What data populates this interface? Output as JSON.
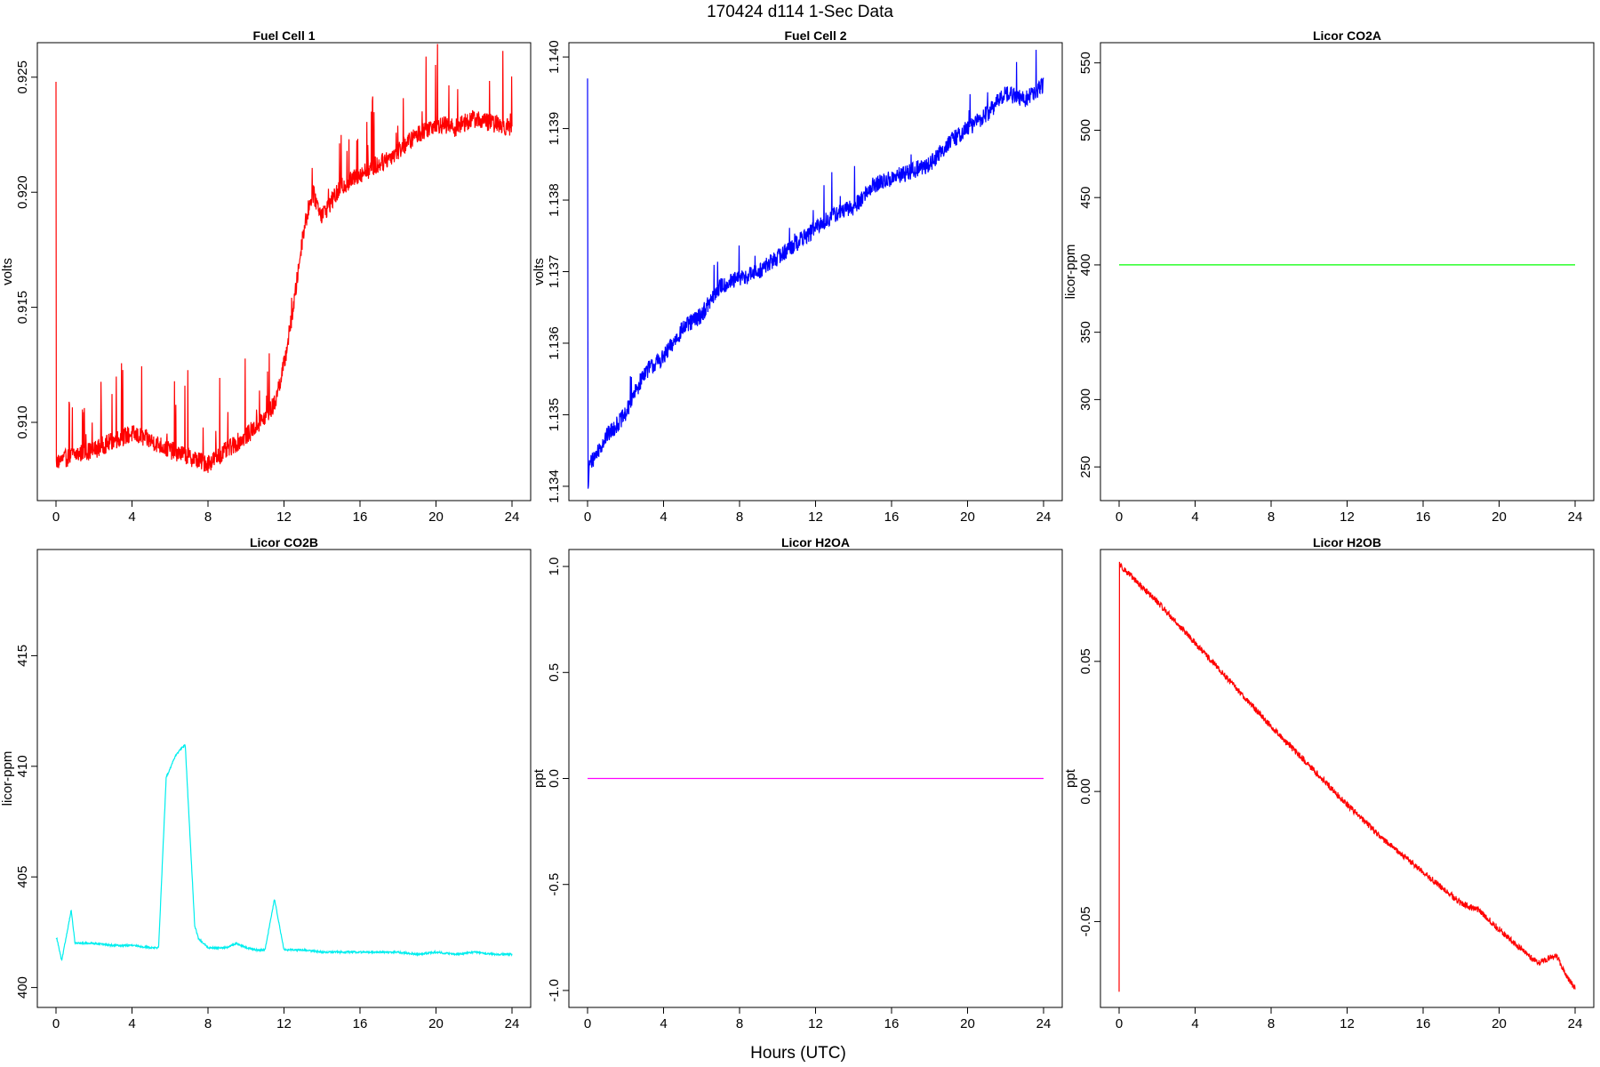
{
  "figure": {
    "title": "170424   d114   1-Sec Data",
    "xlabel": "Hours (UTC)"
  },
  "chart_data": [
    {
      "type": "line",
      "title": "Fuel Cell 1",
      "xlabel": "",
      "ylabel": "volts",
      "color": "#ff0000",
      "xlim": [
        0,
        24
      ],
      "ylim": [
        0.9066,
        0.9265
      ],
      "xticks": [
        0,
        4,
        8,
        12,
        16,
        20,
        24
      ],
      "yticks": [
        0.91,
        0.915,
        0.92,
        0.925
      ],
      "ytick_labels": [
        "0.910",
        "0.915",
        "0.920",
        "0.925"
      ],
      "noise": 0.0004,
      "spike_count": 70,
      "spike_height": 0.0035,
      "x": [
        0,
        0.02,
        0.1,
        1,
        2,
        3,
        4,
        5,
        6,
        7,
        8,
        9,
        10,
        11,
        11.5,
        12,
        12.5,
        13,
        13.5,
        14,
        15,
        16,
        17,
        18,
        19,
        20,
        21,
        22,
        23,
        24
      ],
      "y": [
        0.9248,
        0.9081,
        0.9083,
        0.9086,
        0.9088,
        0.9092,
        0.9095,
        0.9092,
        0.9088,
        0.9085,
        0.9082,
        0.9088,
        0.9094,
        0.9102,
        0.9108,
        0.9125,
        0.915,
        0.9182,
        0.92,
        0.919,
        0.9202,
        0.9208,
        0.9212,
        0.9218,
        0.9225,
        0.923,
        0.9228,
        0.9232,
        0.923,
        0.9228
      ]
    },
    {
      "type": "line",
      "title": "Fuel Cell 2",
      "xlabel": "",
      "ylabel": "volts",
      "color": "#0000ff",
      "xlim": [
        0,
        24
      ],
      "ylim": [
        1.1338,
        1.1402
      ],
      "xticks": [
        0,
        4,
        8,
        12,
        16,
        20,
        24
      ],
      "yticks": [
        1.134,
        1.135,
        1.136,
        1.137,
        1.138,
        1.139,
        1.14
      ],
      "ytick_labels": [
        "1.134",
        "1.135",
        "1.136",
        "1.137",
        "1.138",
        "1.139",
        "1.140"
      ],
      "noise": 0.00012,
      "spike_count": 25,
      "spike_height": 0.0006,
      "x": [
        0,
        0.03,
        0.1,
        1,
        2,
        3,
        4,
        5,
        6,
        7,
        8,
        9,
        10,
        11,
        12,
        13,
        14,
        15,
        16,
        17,
        18,
        19,
        20,
        21,
        22,
        23,
        24
      ],
      "y": [
        1.1397,
        1.134,
        1.1343,
        1.1347,
        1.135,
        1.1356,
        1.1358,
        1.1362,
        1.1364,
        1.1368,
        1.1369,
        1.137,
        1.1372,
        1.1374,
        1.1376,
        1.1378,
        1.1379,
        1.1382,
        1.1383,
        1.1384,
        1.1385,
        1.1388,
        1.139,
        1.1392,
        1.1395,
        1.1394,
        1.1396
      ]
    },
    {
      "type": "line",
      "title": "Licor CO2A",
      "xlabel": "",
      "ylabel": "licor-ppm",
      "color": "#00ff00",
      "xlim": [
        0,
        24
      ],
      "ylim": [
        225,
        565
      ],
      "xticks": [
        0,
        4,
        8,
        12,
        16,
        20,
        24
      ],
      "yticks": [
        250,
        300,
        350,
        400,
        450,
        500,
        550
      ],
      "ytick_labels": [
        "250",
        "300",
        "350",
        "400",
        "450",
        "500",
        "550"
      ],
      "noise": 0,
      "spike_count": 0,
      "spike_height": 0,
      "x": [
        0,
        24
      ],
      "y": [
        400,
        400
      ]
    },
    {
      "type": "line",
      "title": "Licor CO2B",
      "xlabel": "",
      "ylabel": "licor-ppm",
      "color": "#00eeee",
      "xlim": [
        0,
        24
      ],
      "ylim": [
        399.1,
        419.8
      ],
      "xticks": [
        0,
        4,
        8,
        12,
        16,
        20,
        24
      ],
      "yticks": [
        400,
        405,
        410,
        415
      ],
      "ytick_labels": [
        "400",
        "405",
        "410",
        "415"
      ],
      "noise": 0.04,
      "spike_count": 0,
      "spike_height": 0,
      "x": [
        0,
        0.05,
        0.3,
        0.8,
        1.0,
        2,
        3,
        4,
        5,
        5.4,
        5.8,
        6.3,
        6.8,
        7.3,
        7.5,
        8,
        9,
        9.5,
        10,
        10.5,
        11,
        11.5,
        12,
        12.3,
        13,
        14,
        15,
        16,
        17,
        18,
        19,
        20,
        21,
        22,
        23,
        24
      ],
      "y": [
        402.2,
        402.2,
        401.2,
        403.5,
        402.0,
        402.0,
        401.9,
        401.9,
        401.8,
        401.8,
        409.5,
        410.5,
        411.0,
        402.8,
        402.2,
        401.8,
        401.8,
        402.0,
        401.8,
        401.7,
        401.7,
        404.0,
        401.7,
        401.7,
        401.7,
        401.6,
        401.6,
        401.6,
        401.6,
        401.6,
        401.5,
        401.6,
        401.5,
        401.6,
        401.5,
        401.5
      ]
    },
    {
      "type": "line",
      "title": "Licor H2OA",
      "xlabel": "",
      "ylabel": "ppt",
      "color": "#ff00ff",
      "xlim": [
        0,
        24
      ],
      "ylim": [
        -1.08,
        1.08
      ],
      "xticks": [
        0,
        4,
        8,
        12,
        16,
        20,
        24
      ],
      "yticks": [
        -1.0,
        -0.5,
        0.0,
        0.5,
        1.0
      ],
      "ytick_labels": [
        "-1.0",
        "-0.5",
        "0.0",
        "0.5",
        "1.0"
      ],
      "noise": 0,
      "spike_count": 0,
      "spike_height": 0,
      "x": [
        0,
        24
      ],
      "y": [
        0,
        0
      ]
    },
    {
      "type": "line",
      "title": "Licor H2OB",
      "xlabel": "",
      "ylabel": "ppt",
      "color": "#ff0000",
      "xlim": [
        0,
        24
      ],
      "ylim": [
        -0.083,
        0.093
      ],
      "xticks": [
        0,
        4,
        8,
        12,
        16,
        20,
        24
      ],
      "yticks": [
        -0.05,
        0.0,
        0.05
      ],
      "ytick_labels": [
        "-0.05",
        "0.00",
        "0.05"
      ],
      "noise": 0.0012,
      "spike_count": 0,
      "spike_height": 0,
      "x": [
        0,
        0.02,
        0.05,
        1,
        2,
        4,
        6,
        8,
        10,
        12,
        14,
        16,
        18,
        19,
        20,
        22,
        23,
        23.5,
        24
      ],
      "y": [
        -0.077,
        0.088,
        0.087,
        0.08,
        0.073,
        0.057,
        0.041,
        0.025,
        0.01,
        -0.005,
        -0.019,
        -0.031,
        -0.043,
        -0.046,
        -0.053,
        -0.066,
        -0.063,
        -0.07,
        -0.076
      ]
    }
  ]
}
